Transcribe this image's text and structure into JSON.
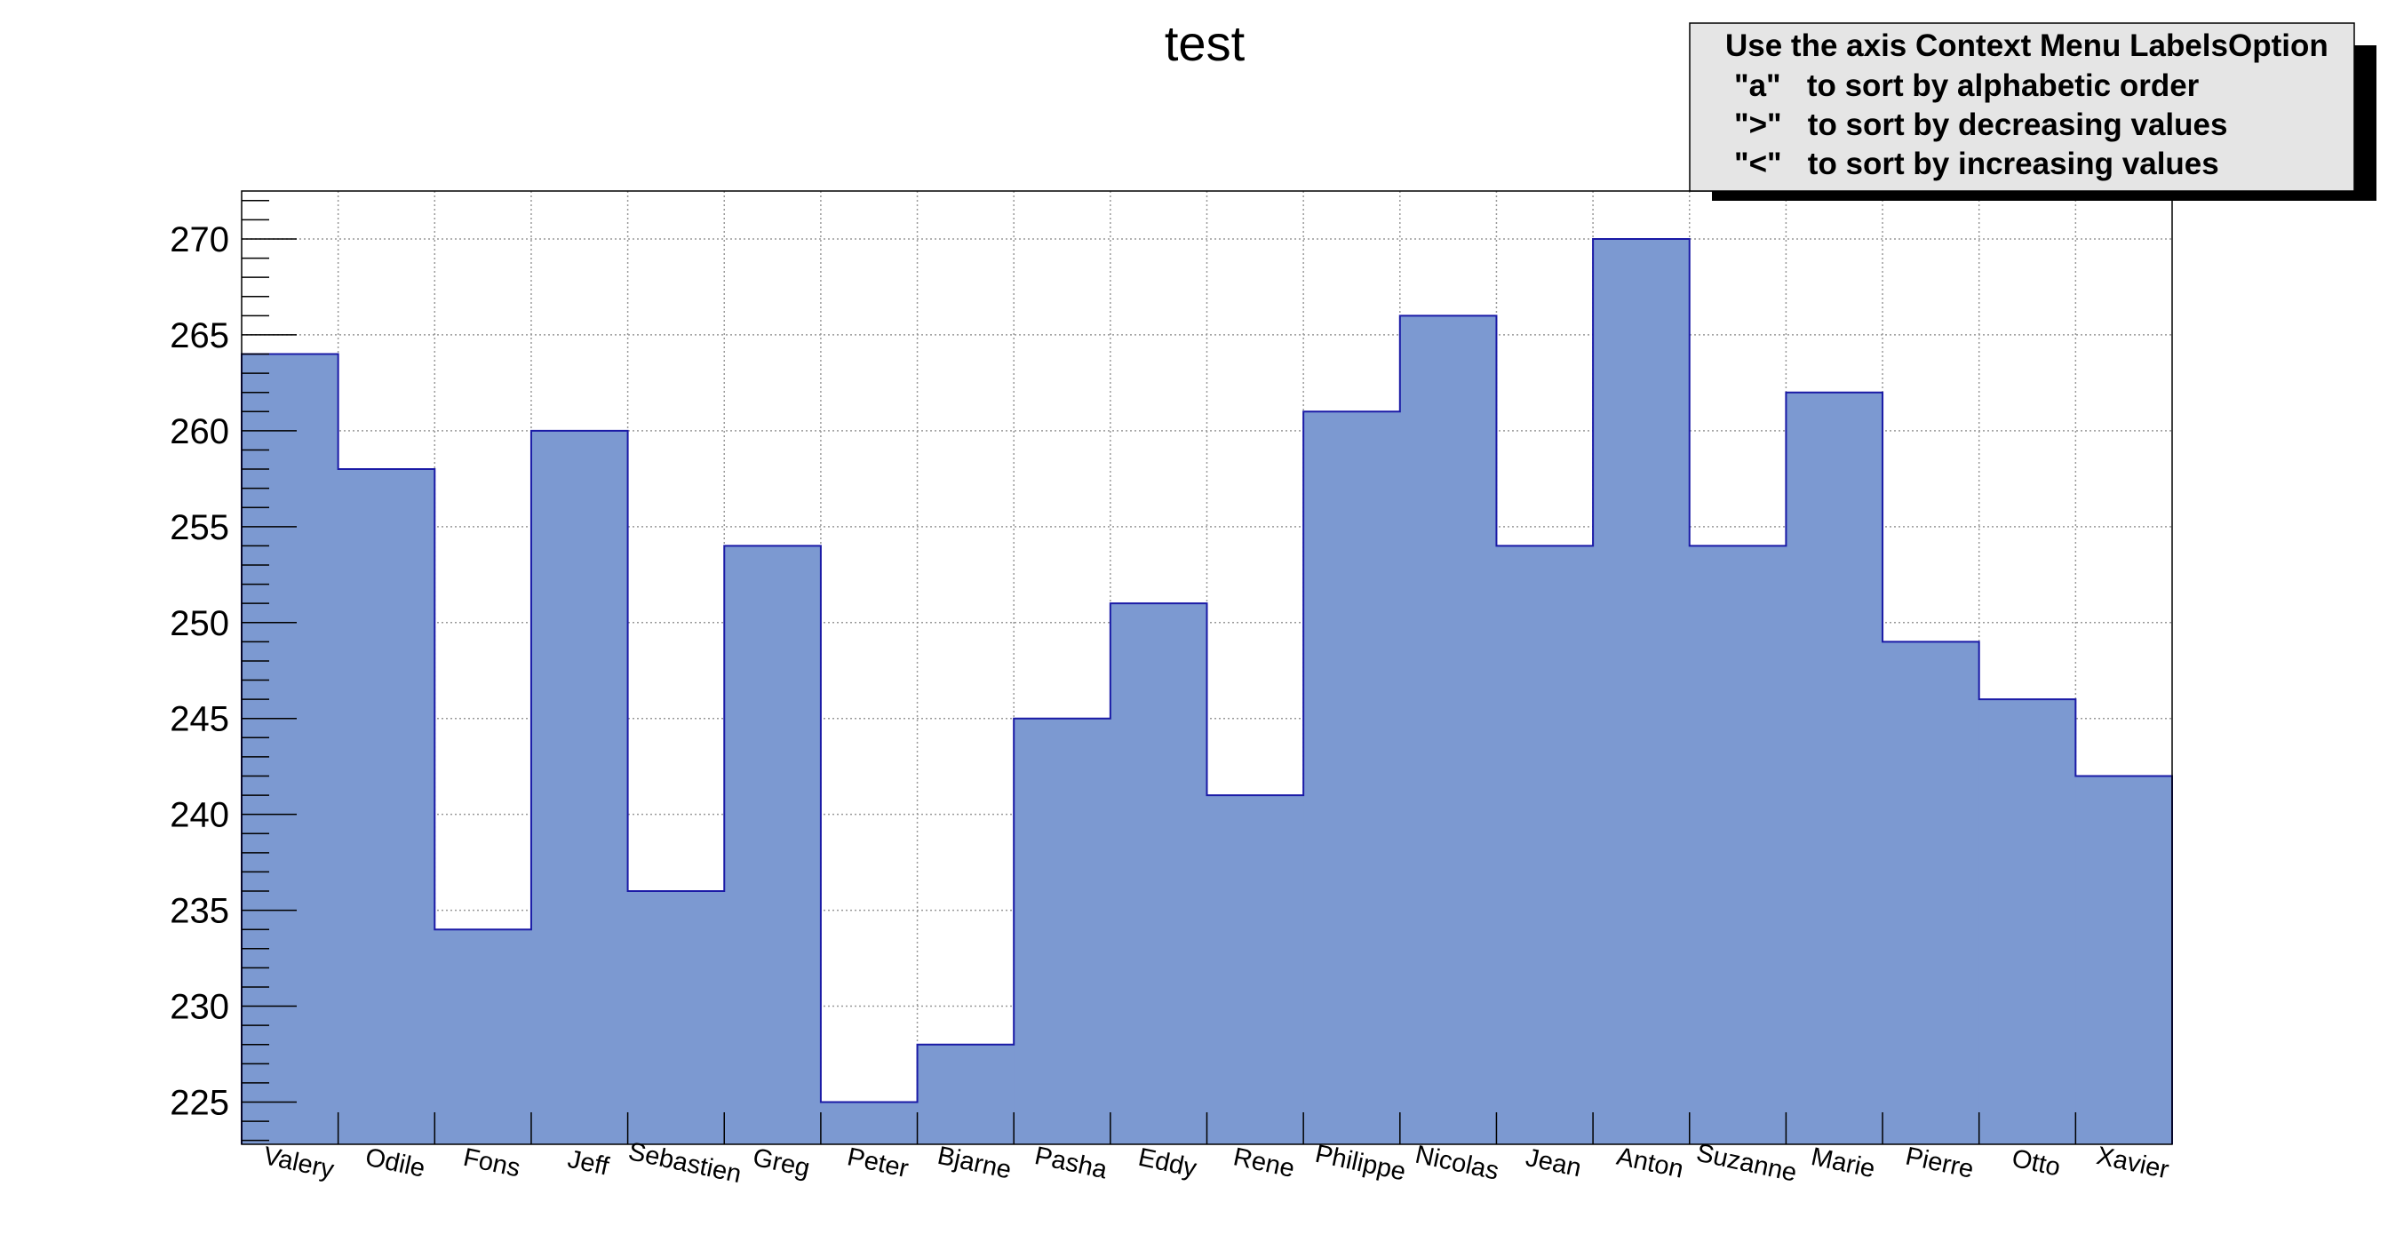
{
  "chart_data": {
    "type": "bar",
    "style": "histogram-step-filled",
    "title": "test",
    "xlabel": "",
    "ylabel": "",
    "categories": [
      "Valery",
      "Odile",
      "Fons",
      "Jeff",
      "Sebastien",
      "Greg",
      "Peter",
      "Bjarne",
      "Pasha",
      "Eddy",
      "Rene",
      "Philippe",
      "Nicolas",
      "Jean",
      "Anton",
      "Suzanne",
      "Marie",
      "Pierre",
      "Otto",
      "Xavier"
    ],
    "values": [
      264,
      258,
      234,
      260,
      236,
      254,
      225,
      228,
      245,
      251,
      241,
      261,
      266,
      254,
      270,
      254,
      262,
      249,
      246,
      242
    ],
    "ylim": [
      222.8,
      272.5
    ],
    "yticks": [
      225,
      230,
      235,
      240,
      245,
      250,
      255,
      260,
      265,
      270
    ],
    "grid": true,
    "legend": {
      "placement": "top-right",
      "lines": [
        "Use the axis Context Menu LabelsOption",
        "\"a\"   to sort by alphabetic order",
        "\">\"   to sort by decreasing values",
        "\"<\"   to sort by increasing values"
      ]
    },
    "colors": {
      "fill": "#7c99d1",
      "line": "#1a1aa6",
      "legend_bg": "#e5e5e5",
      "grid": "#999999"
    }
  }
}
